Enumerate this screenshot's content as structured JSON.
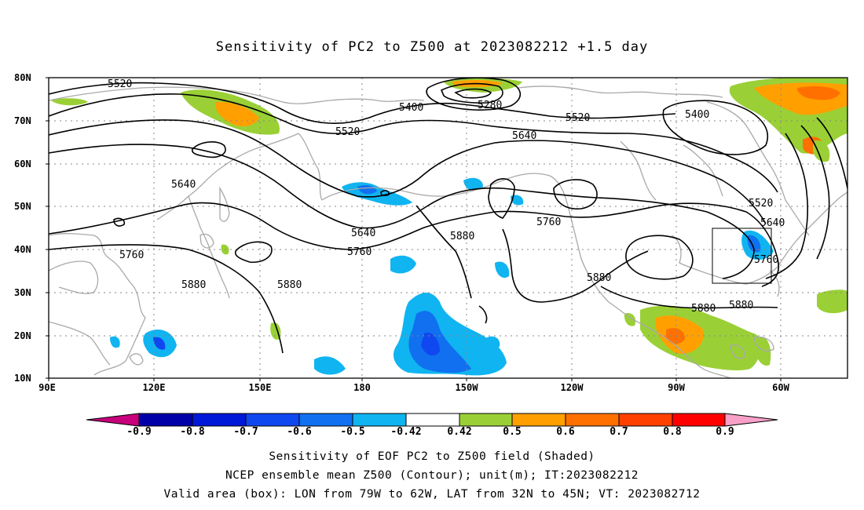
{
  "title": "Sensitivity of PC2 to Z500 at 2023082212 +1.5 day",
  "axes": {
    "y_labels": [
      "80N",
      "70N",
      "60N",
      "50N",
      "40N",
      "30N",
      "20N",
      "10N"
    ],
    "x_labels": [
      "90E",
      "120E",
      "150E",
      "180",
      "150W",
      "120W",
      "90W",
      "60W"
    ]
  },
  "contour_labels": {
    "c5520a": "5520",
    "c5400a": "5400",
    "c5280": "5280",
    "c5520b": "5520",
    "c5520c": "5520",
    "c5400b": "5400",
    "c5640a": "5640",
    "c5640b": "5640",
    "c5520d": "5520",
    "c5640c": "5640",
    "c5640d": "5640",
    "c5760a": "5760",
    "c5760b": "5760",
    "c5880a": "5880",
    "c5760c": "5760",
    "c5880b": "5880",
    "c5880c": "5880",
    "c5880d": "5880",
    "c5880e": "5880",
    "c5880f": "5880",
    "c5760d": "5760"
  },
  "colorbar": {
    "labels": [
      "-0.9",
      "-0.8",
      "-0.7",
      "-0.6",
      "-0.5",
      "-0.42",
      "0.42",
      "0.5",
      "0.6",
      "0.7",
      "0.8",
      "0.9"
    ],
    "colors": [
      "#c8007c",
      "#0000a8",
      "#0018d8",
      "#1048f0",
      "#1070f0",
      "#10b4f0",
      "#ffffff",
      "#9ad036",
      "#ffa000",
      "#ff7000",
      "#ff4000",
      "#ff0000",
      "#f8a0c8"
    ]
  },
  "captions": {
    "line1": "Sensitivity of EOF PC2 to Z500 field (Shaded)",
    "line2": "NCEP ensemble mean Z500 (Contour); unit(m); IT:2023082212",
    "line3": "Valid area (box): LON from 79W to 62W, LAT from 32N to 45N; VT: 2023082712"
  }
}
